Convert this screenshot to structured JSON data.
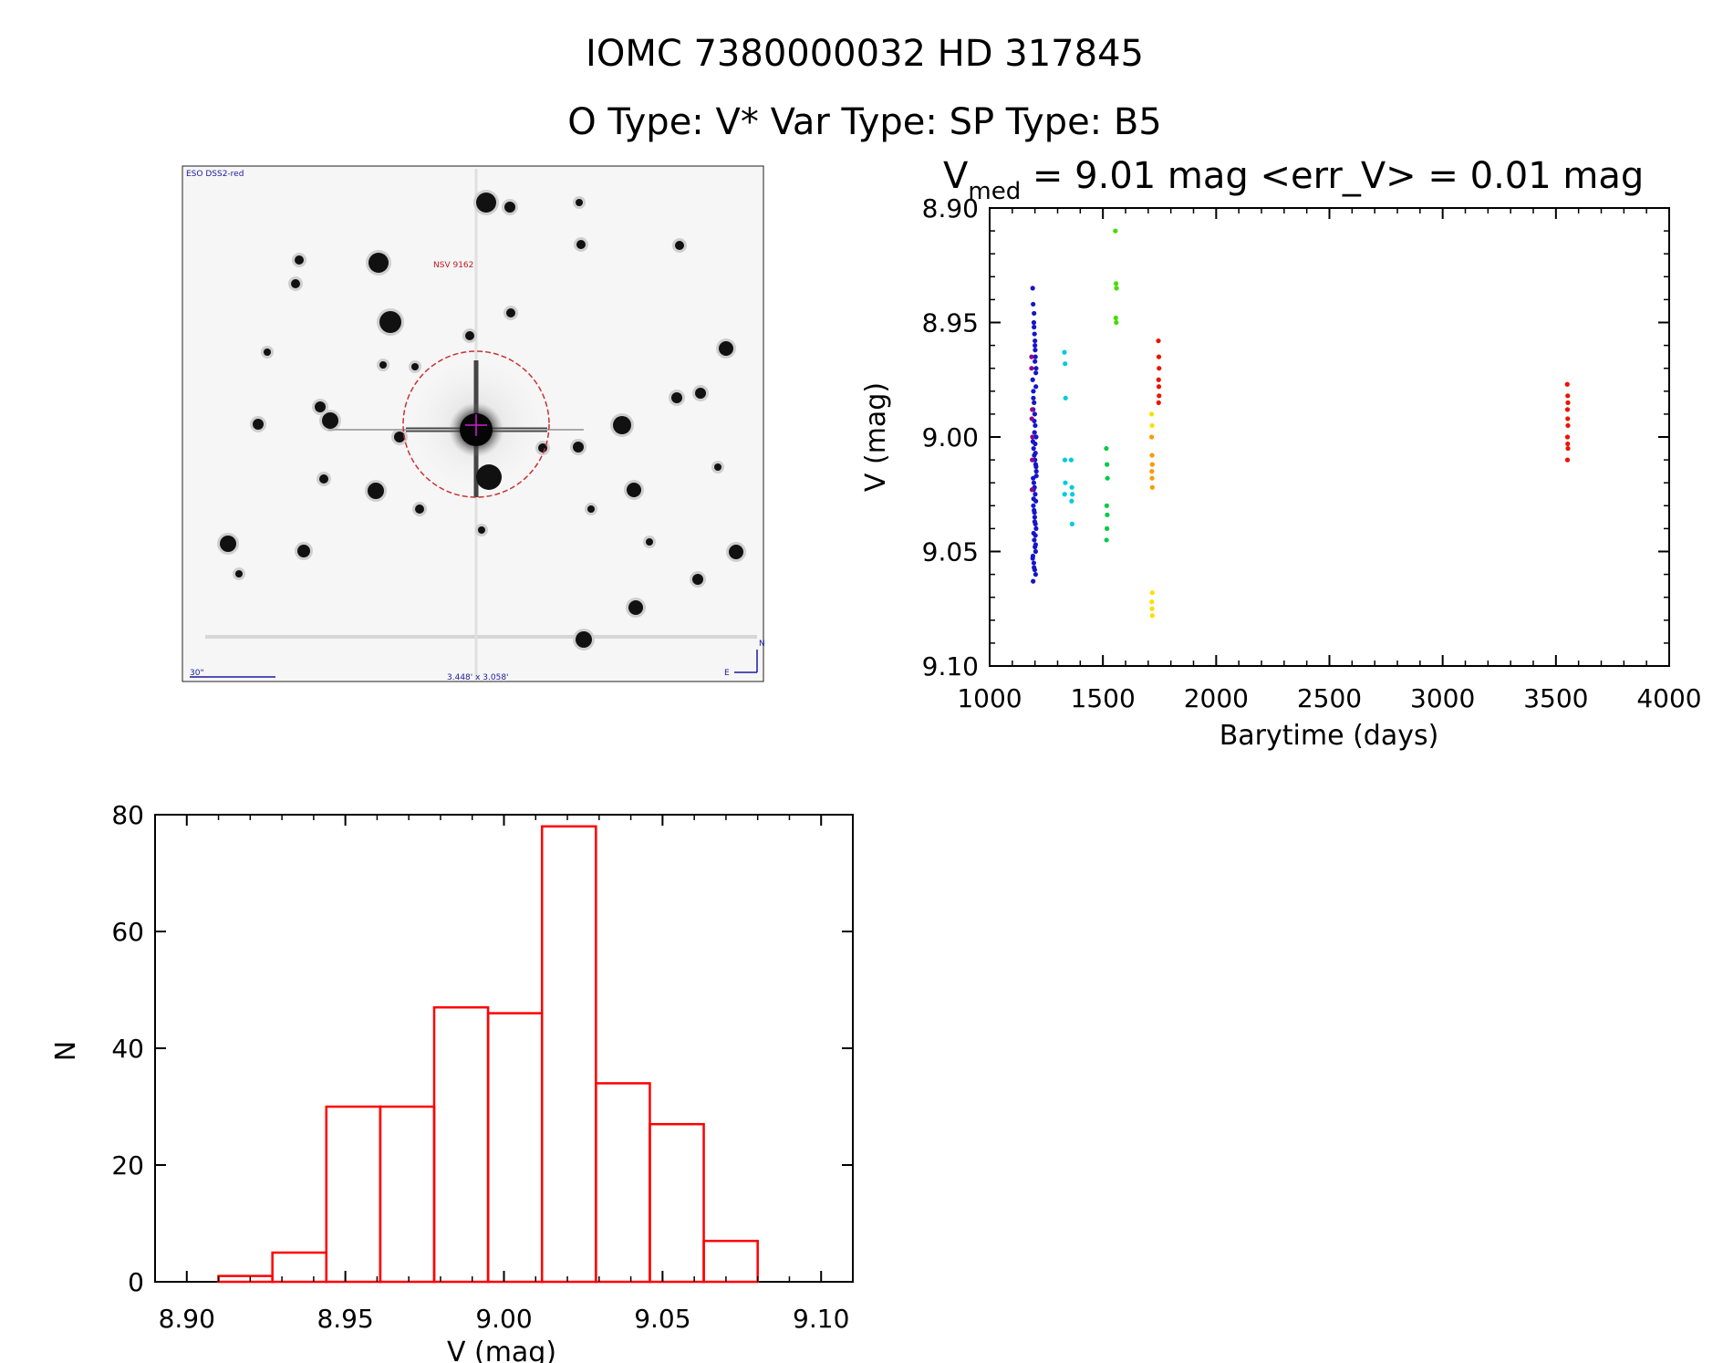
{
  "header": {
    "title_line1": "IOMC 7380000032    HD 317845",
    "title_line2": "O Type: V*  Var Type:    SP Type: B5"
  },
  "finder_image": {
    "survey_label": "ESO DSS2-red",
    "object_label": "NSV 9162",
    "scale_label": "30\"",
    "size_label": "3.448' x 3.058'",
    "north_label": "N",
    "east_label": "E"
  },
  "colors": {
    "histogram": "#ff0000",
    "marker_circle": "#c83232",
    "image_text_blue": "#1a1aa0",
    "image_text_red": "#c01818"
  },
  "chart_data": [
    {
      "type": "scatter",
      "title_main": "V",
      "title_sub": "med",
      "title_rest": " = 9.01 mag <err_V> = 0.01 mag",
      "xlabel": "Barytime (days)",
      "ylabel": "V (mag)",
      "xlim": [
        1000,
        4000
      ],
      "ylim": [
        9.1,
        8.9
      ],
      "y_inverted": true,
      "xticks": [
        "1000",
        "1500",
        "2000",
        "2500",
        "3000",
        "3500",
        "4000"
      ],
      "yticks": [
        "8.90",
        "8.95",
        "9.00",
        "9.05",
        "9.10"
      ],
      "series": [
        {
          "color": "#1515cc",
          "x": [
            1190,
            1192,
            1195,
            1198,
            1200,
            1202,
            1205,
            1190,
            1193,
            1196,
            1199,
            1201,
            1204,
            1191,
            1194,
            1197,
            1200,
            1203,
            1206,
            1192,
            1195,
            1198,
            1201,
            1204,
            1193,
            1196,
            1199,
            1202,
            1205,
            1194,
            1197,
            1200,
            1203,
            1191,
            1195,
            1199,
            1203,
            1192,
            1196,
            1200,
            1204,
            1193,
            1197,
            1201,
            1205,
            1194,
            1198,
            1202,
            1190,
            1196,
            1200,
            1204,
            1192,
            1198,
            1202,
            1206,
            1194,
            1199,
            1203,
            1196,
            1201,
            1205
          ],
          "y": [
            8.935,
            8.942,
            8.95,
            8.955,
            8.96,
            8.965,
            8.97,
            8.975,
            8.98,
            8.985,
            8.99,
            8.995,
            9.0,
            9.002,
            9.005,
            9.008,
            9.01,
            9.012,
            9.015,
            9.018,
            9.02,
            9.022,
            9.025,
            9.028,
            9.03,
            9.032,
            9.035,
            9.038,
            9.04,
            9.042,
            9.045,
            9.048,
            9.05,
            9.052,
            9.055,
            9.058,
            9.06,
            9.063,
            8.946,
            8.958,
            8.972,
            8.983,
            8.993,
            9.003,
            9.013,
            9.023,
            9.033,
            9.043,
            9.053,
            8.952,
            8.967,
            8.978,
            8.988,
            8.998,
            9.007,
            9.017,
            9.027,
            9.037,
            9.047,
            9.057,
            8.962,
            9.0
          ]
        },
        {
          "color": "#8a0a8a",
          "x": [
            1185,
            1188,
            1186,
            1189,
            1187,
            1185,
            1188
          ],
          "y": [
            8.965,
            8.988,
            8.992,
            9.0,
            9.023,
            8.97,
            9.01
          ]
        },
        {
          "color": "#00ccdd",
          "x": [
            1330,
            1333,
            1335,
            1332,
            1334,
            1331,
            1360,
            1363,
            1365,
            1362,
            1364
          ],
          "y": [
            8.963,
            8.968,
            8.983,
            9.01,
            9.02,
            9.025,
            9.01,
            9.022,
            9.025,
            9.028,
            9.038
          ]
        },
        {
          "color": "#00cc44",
          "x": [
            1515,
            1518,
            1520,
            1517,
            1519,
            1516,
            1518
          ],
          "y": [
            9.005,
            9.012,
            9.018,
            9.03,
            9.034,
            9.045,
            9.04
          ]
        },
        {
          "color": "#44dd00",
          "x": [
            1555,
            1558,
            1560,
            1557,
            1559
          ],
          "y": [
            8.91,
            8.933,
            8.935,
            8.948,
            8.95
          ]
        },
        {
          "color": "#ffdd00",
          "x": [
            1715,
            1717,
            1718,
            1716,
            1717,
            1718
          ],
          "y": [
            8.99,
            8.995,
            9.068,
            9.072,
            9.075,
            9.078
          ]
        },
        {
          "color": "#ff9900",
          "x": [
            1715,
            1717,
            1718,
            1716,
            1717,
            1718
          ],
          "y": [
            9.0,
            9.008,
            9.012,
            9.015,
            9.018,
            9.022
          ]
        },
        {
          "color": "#ee1100",
          "x": [
            1745,
            1747,
            1748,
            1746,
            1747,
            1748,
            1746
          ],
          "y": [
            8.958,
            8.965,
            8.97,
            8.975,
            8.978,
            8.982,
            8.985
          ]
        },
        {
          "color": "#ee1100",
          "x": [
            3550,
            3552,
            3553,
            3551,
            3552,
            3553,
            3551,
            3552,
            3553,
            3551
          ],
          "y": [
            8.977,
            8.982,
            8.985,
            8.988,
            8.992,
            8.995,
            9.0,
            9.003,
            9.005,
            9.01
          ]
        }
      ]
    },
    {
      "type": "bar",
      "subtype": "histogram_step",
      "xlabel": "V (mag)",
      "ylabel": "N",
      "xlim": [
        8.89,
        9.11
      ],
      "ylim": [
        0,
        80
      ],
      "xticks": [
        "8.90",
        "8.95",
        "9.00",
        "9.05",
        "9.10"
      ],
      "yticks": [
        "0",
        "20",
        "40",
        "60",
        "80"
      ],
      "bin_edges": [
        8.91,
        8.927,
        8.944,
        8.961,
        8.978,
        8.995,
        9.012,
        9.029,
        9.046,
        9.063,
        9.08
      ],
      "values": [
        1,
        5,
        30,
        30,
        47,
        46,
        78,
        34,
        27,
        7
      ]
    }
  ]
}
